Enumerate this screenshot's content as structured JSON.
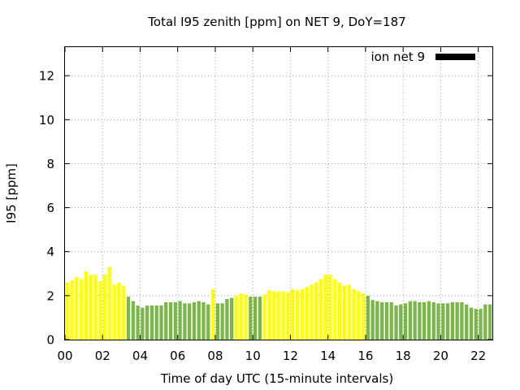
{
  "chart_data": {
    "type": "bar",
    "title": "Total I95 zenith [ppm] on NET 9, DoY=187",
    "xlabel": "Time of day UTC (15-minute intervals)",
    "ylabel": "I95 [ppm]",
    "xlim": [
      0,
      22.75
    ],
    "ylim": [
      0,
      13.3
    ],
    "x_tick_values": [
      0,
      2,
      4,
      6,
      8,
      10,
      12,
      14,
      16,
      18,
      20,
      22
    ],
    "x_tick_labels": [
      "00",
      "02",
      "04",
      "06",
      "08",
      "10",
      "12",
      "14",
      "16",
      "18",
      "20",
      "22"
    ],
    "y_tick_values": [
      0,
      2,
      4,
      6,
      8,
      10,
      12
    ],
    "y_tick_labels": [
      "0",
      "2",
      "4",
      "6",
      "8",
      "10",
      "12"
    ],
    "grid": true,
    "legend": {
      "label": "ion net 9",
      "color": "#000000",
      "position": "top-right"
    },
    "interval_hours": 0.25,
    "colors": {
      "yellow": "#ffff00",
      "green": "#7ab648"
    },
    "series": [
      {
        "x": [
          0,
          0.25,
          0.5,
          0.75,
          1,
          1.25,
          1.5,
          1.75,
          2,
          2.25,
          2.5,
          2.75,
          3,
          3.25,
          3.5,
          3.75,
          4,
          4.25,
          4.5,
          4.75,
          5,
          5.25,
          5.5,
          5.75,
          6,
          6.25,
          6.5,
          6.75,
          7,
          7.25,
          7.5,
          7.75,
          8,
          8.25,
          8.5,
          8.75,
          9,
          9.25,
          9.5,
          9.75,
          10,
          10.25,
          10.5,
          10.75,
          11,
          11.25,
          11.5,
          11.75,
          12,
          12.25,
          12.5,
          12.75,
          13,
          13.25,
          13.5,
          13.75,
          14,
          14.25,
          14.5,
          14.75,
          15,
          15.25,
          15.5,
          15.75,
          16,
          16.25,
          16.5,
          16.75,
          17,
          17.25,
          17.5,
          17.75,
          18,
          18.25,
          18.5,
          18.75,
          19,
          19.25,
          19.5,
          19.75,
          20,
          20.25,
          20.5,
          20.75,
          21,
          21.25,
          21.5,
          21.75,
          22,
          22.25,
          22.5
        ],
        "values": [
          2.6,
          2.7,
          2.85,
          2.75,
          3.1,
          2.95,
          2.95,
          2.65,
          2.95,
          3.3,
          2.5,
          2.6,
          2.45,
          1.95,
          1.75,
          1.55,
          1.45,
          1.55,
          1.55,
          1.55,
          1.55,
          1.7,
          1.7,
          1.7,
          1.75,
          1.65,
          1.65,
          1.7,
          1.75,
          1.7,
          1.6,
          2.3,
          1.65,
          1.65,
          1.85,
          1.9,
          2.0,
          2.1,
          2.05,
          1.95,
          1.95,
          1.95,
          2.05,
          2.25,
          2.2,
          2.2,
          2.2,
          2.15,
          2.3,
          2.25,
          2.3,
          2.4,
          2.5,
          2.6,
          2.75,
          2.95,
          2.95,
          2.75,
          2.6,
          2.45,
          2.5,
          2.3,
          2.2,
          2.1,
          2.0,
          1.8,
          1.75,
          1.7,
          1.7,
          1.7,
          1.55,
          1.6,
          1.65,
          1.75,
          1.75,
          1.7,
          1.7,
          1.75,
          1.7,
          1.65,
          1.65,
          1.65,
          1.7,
          1.7,
          1.7,
          1.6,
          1.45,
          1.4,
          1.4,
          1.6,
          1.6
        ],
        "colors": [
          "yellow",
          "yellow",
          "yellow",
          "yellow",
          "yellow",
          "yellow",
          "yellow",
          "yellow",
          "yellow",
          "yellow",
          "yellow",
          "yellow",
          "yellow",
          "green",
          "green",
          "green",
          "green",
          "green",
          "green",
          "green",
          "green",
          "green",
          "green",
          "green",
          "green",
          "green",
          "green",
          "green",
          "green",
          "green",
          "green",
          "yellow",
          "green",
          "green",
          "green",
          "green",
          "yellow",
          "yellow",
          "yellow",
          "green",
          "green",
          "green",
          "yellow",
          "yellow",
          "yellow",
          "yellow",
          "yellow",
          "yellow",
          "yellow",
          "yellow",
          "yellow",
          "yellow",
          "yellow",
          "yellow",
          "yellow",
          "yellow",
          "yellow",
          "yellow",
          "yellow",
          "yellow",
          "yellow",
          "yellow",
          "yellow",
          "yellow",
          "green",
          "green",
          "green",
          "green",
          "green",
          "green",
          "green",
          "green",
          "green",
          "green",
          "green",
          "green",
          "green",
          "green",
          "green",
          "green",
          "green",
          "green",
          "green",
          "green",
          "green",
          "green",
          "green",
          "green",
          "green",
          "green",
          "green"
        ]
      }
    ]
  }
}
